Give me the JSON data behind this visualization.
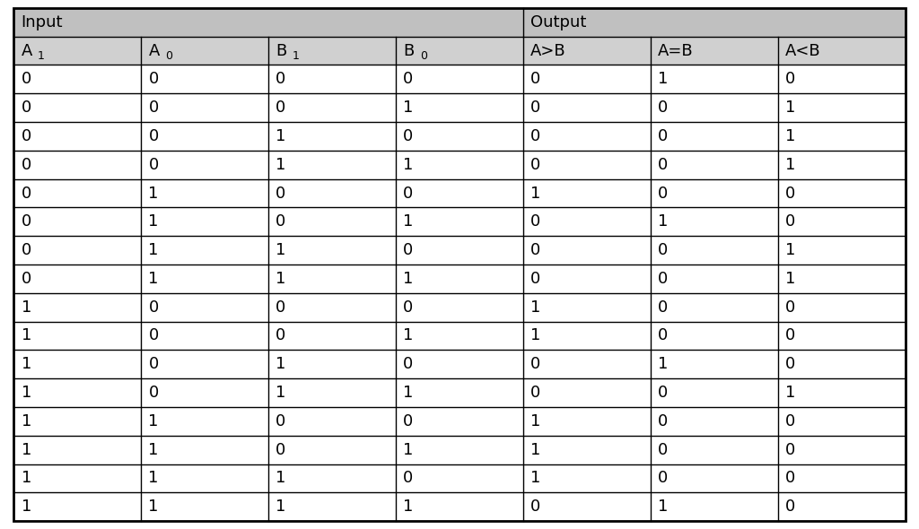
{
  "header_row1_left": "Input",
  "header_row1_right": "Output",
  "header_row2": [
    "A",
    "A",
    "B",
    "B",
    "A>B",
    "A=B",
    "A<B"
  ],
  "header_row2_subs": [
    "1",
    "0",
    "1",
    "0",
    null,
    null,
    null
  ],
  "rows": [
    [
      0,
      0,
      0,
      0,
      0,
      1,
      0
    ],
    [
      0,
      0,
      0,
      1,
      0,
      0,
      1
    ],
    [
      0,
      0,
      1,
      0,
      0,
      0,
      1
    ],
    [
      0,
      0,
      1,
      1,
      0,
      0,
      1
    ],
    [
      0,
      1,
      0,
      0,
      1,
      0,
      0
    ],
    [
      0,
      1,
      0,
      1,
      0,
      1,
      0
    ],
    [
      0,
      1,
      1,
      0,
      0,
      0,
      1
    ],
    [
      0,
      1,
      1,
      1,
      0,
      0,
      1
    ],
    [
      1,
      0,
      0,
      0,
      1,
      0,
      0
    ],
    [
      1,
      0,
      0,
      1,
      1,
      0,
      0
    ],
    [
      1,
      0,
      1,
      0,
      0,
      1,
      0
    ],
    [
      1,
      0,
      1,
      1,
      0,
      0,
      1
    ],
    [
      1,
      1,
      0,
      0,
      1,
      0,
      0
    ],
    [
      1,
      1,
      0,
      1,
      1,
      0,
      0
    ],
    [
      1,
      1,
      1,
      0,
      1,
      0,
      0
    ],
    [
      1,
      1,
      1,
      1,
      0,
      1,
      0
    ]
  ],
  "header1_bg": "#c0c0c0",
  "header2_bg": "#d0d0d0",
  "data_bg": "#ffffff",
  "border_color": "#000000",
  "text_color": "#000000",
  "figsize": [
    10.24,
    5.9
  ],
  "dpi": 100,
  "n_cols": 7,
  "col_split": 4,
  "outer_lw": 2.0,
  "inner_lw": 1.0,
  "header1_fs": 13,
  "header2_fs": 13,
  "data_fs": 13,
  "sub_fs": 9
}
